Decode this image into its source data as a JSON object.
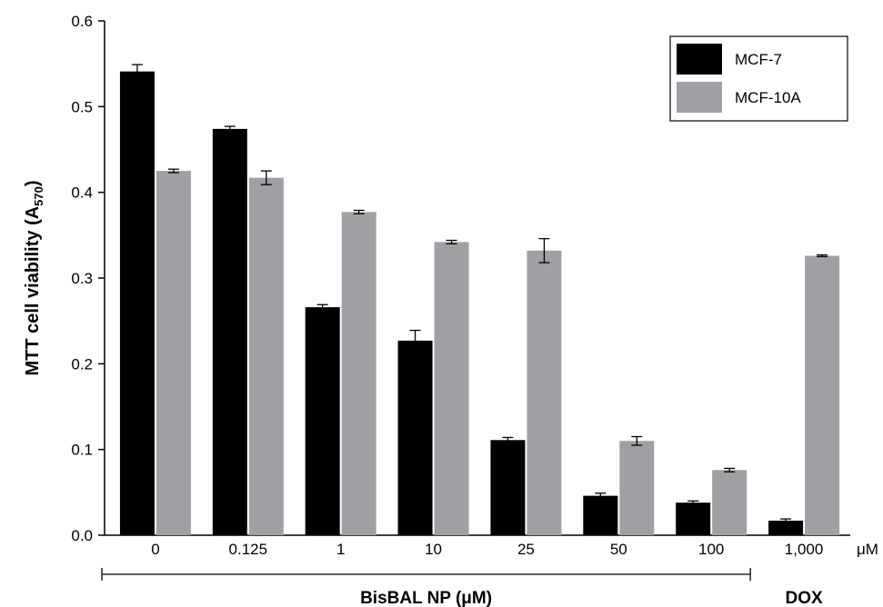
{
  "chart_data": {
    "type": "bar",
    "categories": [
      "0",
      "0.125",
      "1",
      "10",
      "25",
      "50",
      "100",
      "1,000"
    ],
    "unit_label": "μM",
    "series": [
      {
        "name": "MCF-7",
        "color": "#000000",
        "values": [
          0.541,
          0.474,
          0.266,
          0.227,
          0.111,
          0.046,
          0.038,
          0.017
        ],
        "errors": [
          0.008,
          0.003,
          0.003,
          0.012,
          0.003,
          0.003,
          0.002,
          0.002
        ]
      },
      {
        "name": "MCF-10A",
        "color": "#a0a0a4",
        "values": [
          0.425,
          0.417,
          0.377,
          0.342,
          0.332,
          0.11,
          0.076,
          0.326
        ],
        "errors": [
          0.002,
          0.008,
          0.002,
          0.002,
          0.014,
          0.005,
          0.002,
          0.001
        ]
      }
    ],
    "ylabel": {
      "main": "MTT cell viability (A",
      "sub": "570",
      "tail": ")"
    },
    "ylim": [
      0,
      0.6
    ],
    "yticks": [
      "0.0",
      "0.1",
      "0.2",
      "0.3",
      "0.4",
      "0.5",
      "0.6"
    ],
    "groups": [
      {
        "label": "BisBAL NP (μM)",
        "from": 0,
        "to": 6
      },
      {
        "label": "DOX",
        "from": 7,
        "to": 7
      }
    ],
    "legend_position": "top-right",
    "grid": false
  }
}
